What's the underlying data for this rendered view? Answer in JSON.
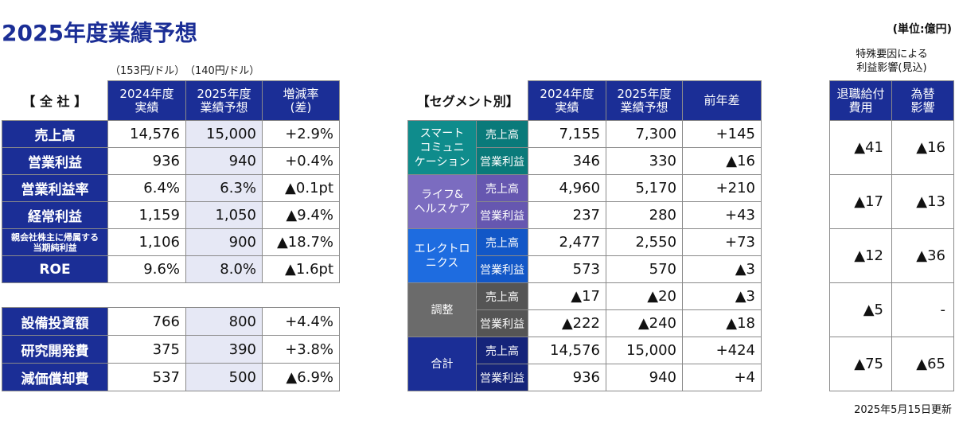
{
  "title": "2025年度業績予想",
  "unit": "(単位:億円)",
  "fx_2024": "（153円/ドル）",
  "fx_2025": "（140円/ドル）",
  "impact_note_l1": "特殊要因による",
  "impact_note_l2": "利益影響(見込)",
  "updated": "2025年5月15日更新",
  "company": {
    "header": {
      "label": "【 全 社 】",
      "c1": "2024年度\n実績",
      "c2": "2025年度\n業績予想",
      "c3": "増減率\n(差)"
    },
    "rows": [
      {
        "label": "売上高",
        "v24": "14,576",
        "v25": "15,000",
        "chg": "+2.9%"
      },
      {
        "label": "営業利益",
        "v24": "936",
        "v25": "940",
        "chg": "+0.4%"
      },
      {
        "label": "営業利益率",
        "v24": "6.4%",
        "v25": "6.3%",
        "chg": "▲0.1pt"
      },
      {
        "label": "経常利益",
        "v24": "1,159",
        "v25": "1,050",
        "chg": "▲9.4%"
      },
      {
        "label": "親会社株主に帰属する\n当期純利益",
        "v24": "1,106",
        "v25": "900",
        "chg": "▲18.7%"
      },
      {
        "label": "ROE",
        "v24": "9.6%",
        "v25": "8.0%",
        "chg": "▲1.6pt"
      }
    ],
    "capex": [
      {
        "label": "設備投資額",
        "v24": "766",
        "v25": "800",
        "chg": "+4.4%"
      },
      {
        "label": "研究開発費",
        "v24": "375",
        "v25": "390",
        "chg": "+3.8%"
      },
      {
        "label": "減価償却費",
        "v24": "537",
        "v25": "500",
        "chg": "▲6.9%"
      }
    ]
  },
  "segment": {
    "header": {
      "label": "【セグメント別】",
      "c1": "2024年度\n実績",
      "c2": "2025年度\n業績予想",
      "c3": "前年差"
    },
    "sales_label": "売上高",
    "op_label": "営業利益",
    "groups": [
      {
        "name": "スマート\nコミュニ\nケーション",
        "sales": [
          "7,155",
          "7,300",
          "+145"
        ],
        "op": [
          "346",
          "330",
          "▲16"
        ]
      },
      {
        "name": "ライフ&\nヘルスケア",
        "sales": [
          "4,960",
          "5,170",
          "+210"
        ],
        "op": [
          "237",
          "280",
          "+43"
        ]
      },
      {
        "name": "エレクトロ\nニクス",
        "sales": [
          "2,477",
          "2,550",
          "+73"
        ],
        "op": [
          "573",
          "570",
          "▲3"
        ]
      },
      {
        "name": "調整",
        "sales": [
          "▲17",
          "▲20",
          "▲3"
        ],
        "op": [
          "▲222",
          "▲240",
          "▲18"
        ]
      },
      {
        "name": "合計",
        "sales": [
          "14,576",
          "15,000",
          "+424"
        ],
        "op": [
          "936",
          "940",
          "+4"
        ]
      }
    ]
  },
  "impact": {
    "header": {
      "c1": "退職給付\n費用",
      "c2": "為替\n影響"
    },
    "rows": [
      {
        "ret": "▲41",
        "fx": "▲16"
      },
      {
        "ret": "▲17",
        "fx": "▲13"
      },
      {
        "ret": "▲12",
        "fx": "▲36"
      },
      {
        "ret": "▲5",
        "fx": "-"
      },
      {
        "ret": "▲75",
        "fx": "▲65"
      }
    ]
  }
}
